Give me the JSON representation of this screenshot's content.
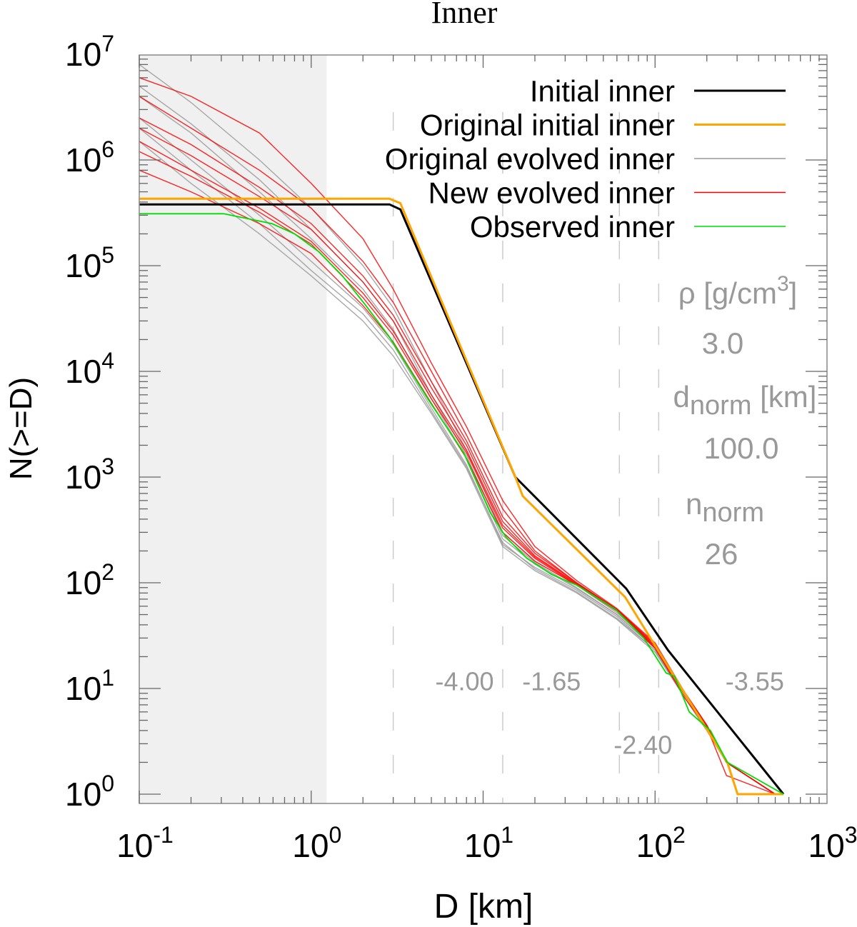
{
  "chart_data": {
    "type": "line",
    "title": "Inner",
    "xlabel": "D [km]",
    "ylabel": "N(>=D)",
    "xscale": "log",
    "yscale": "log",
    "xlim": [
      0.1,
      1000
    ],
    "ylim": [
      0.82,
      10000000
    ],
    "x_ticks": [
      {
        "base": "10",
        "exp": "-1",
        "value": 0.1
      },
      {
        "base": "10",
        "exp": "0",
        "value": 1
      },
      {
        "base": "10",
        "exp": "1",
        "value": 10
      },
      {
        "base": "10",
        "exp": "2",
        "value": 100
      },
      {
        "base": "10",
        "exp": "3",
        "value": 1000
      }
    ],
    "y_ticks": [
      {
        "base": "10",
        "exp": "0",
        "value": 1
      },
      {
        "base": "10",
        "exp": "1",
        "value": 10
      },
      {
        "base": "10",
        "exp": "2",
        "value": 100
      },
      {
        "base": "10",
        "exp": "3",
        "value": 1000
      },
      {
        "base": "10",
        "exp": "4",
        "value": 10000
      },
      {
        "base": "10",
        "exp": "5",
        "value": 100000
      },
      {
        "base": "10",
        "exp": "6",
        "value": 1000000
      },
      {
        "base": "10",
        "exp": "7",
        "value": 10000000
      }
    ],
    "shaded_region_x": [
      0.1,
      1.23
    ],
    "shaded_color": "#f0f0f0",
    "dashed_lines_x": [
      3,
      13,
      62,
      105
    ],
    "legend_position": "top-right",
    "grid": false,
    "ensemble_d": [
      0.1,
      0.2,
      0.5,
      1,
      2,
      3,
      5,
      8,
      13,
      20,
      35,
      60,
      100,
      150,
      200,
      260,
      500
    ],
    "series": [
      {
        "name": "Original evolved inner",
        "color": "#999999",
        "kind": "ensemble",
        "curves": [
          [
            8000000.0,
            3500000.0,
            1000000.0,
            350000.0,
            100000.0,
            40000.0,
            8000.0,
            1800.0,
            300,
            160,
            95,
            52,
            25,
            9,
            4.5,
            2,
            1
          ],
          [
            4000000.0,
            1800000.0,
            500000.0,
            180000.0,
            60000.0,
            25000.0,
            5500.0,
            1500.0,
            260,
            150,
            88,
            50,
            24,
            8.5,
            4.2,
            2,
            1
          ],
          [
            2500000.0,
            1000000.0,
            300000.0,
            110000.0,
            40000.0,
            18000.0,
            4500.0,
            1300.0,
            230,
            140,
            85,
            48,
            23,
            8,
            4,
            2,
            1
          ],
          [
            1500000.0,
            600000.0,
            200000.0,
            80000.0,
            30000.0,
            14000.0,
            4000.0,
            1200.0,
            220,
            130,
            80,
            45,
            22,
            8,
            4,
            2,
            1
          ],
          [
            5000000.0,
            2200000.0,
            650000.0,
            220000.0,
            70000.0,
            30000.0,
            6000.0,
            1600.0,
            280,
            155,
            90,
            50,
            24,
            8.5,
            4.2,
            2,
            1
          ],
          [
            2000000.0,
            800000.0,
            250000.0,
            90000.0,
            35000.0,
            16000.0,
            4200.0,
            1250.0,
            240,
            135,
            82,
            46,
            23,
            8,
            4,
            2,
            1
          ]
        ]
      },
      {
        "name": "New evolved inner",
        "color": "#ff0000",
        "kind": "ensemble",
        "curves": [
          [
            4000000.0,
            2000000.0,
            800000.0,
            350000.0,
            110000.0,
            45000.0,
            10000.0,
            2500.0,
            500,
            200,
            100,
            56,
            26,
            8.5,
            4.3,
            2,
            1
          ],
          [
            2000000.0,
            1100000.0,
            450000.0,
            220000.0,
            70000.0,
            30000.0,
            7000.0,
            2000.0,
            380,
            180,
            98,
            55,
            25,
            8.5,
            4.3,
            2,
            1
          ],
          [
            1200000.0,
            700000.0,
            320000.0,
            160000.0,
            50000.0,
            22000.0,
            5500.0,
            1700.0,
            330,
            170,
            95,
            55,
            24,
            8.5,
            4.3,
            2,
            1
          ],
          [
            800000.0,
            500000.0,
            250000.0,
            130000.0,
            42000.0,
            19000.0,
            5000.0,
            1500.0,
            300,
            160,
            95,
            54,
            24,
            8,
            4.2,
            2,
            1
          ],
          [
            2500000.0,
            1400000.0,
            550000.0,
            250000.0,
            80000.0,
            34000.0,
            8000.0,
            2200.0,
            420,
            190,
            100,
            56,
            26,
            9,
            4.5,
            2,
            1
          ],
          [
            1500000.0,
            800000.0,
            350000.0,
            170000.0,
            55000.0,
            24000.0,
            6000.0,
            1800.0,
            350,
            175,
            97,
            55,
            25,
            8.5,
            4.3,
            1.5,
            1
          ],
          [
            6000000.0,
            4000000.0,
            1800000.0,
            600000.0,
            180000.0,
            60000.0,
            12000.0,
            3000.0,
            600,
            220,
            105,
            57,
            27,
            9,
            4.5,
            2,
            1
          ]
        ]
      },
      {
        "name": "Initial inner",
        "color": "#000000",
        "kind": "line",
        "x": [
          0.1,
          2.85,
          3.3,
          15.4,
          68,
          119,
          558
        ],
        "y": [
          380000,
          380000,
          340000,
          1000,
          88,
          23,
          1
        ]
      },
      {
        "name": "Original initial inner",
        "color": "#ffa500",
        "kind": "line",
        "x": [
          0.1,
          2.85,
          3.3,
          15.4,
          17,
          67,
          263,
          302,
          558
        ],
        "y": [
          430000,
          430000,
          390000,
          1000,
          660,
          73,
          2,
          1,
          1
        ]
      },
      {
        "name": "Observed inner",
        "color": "#00dd00",
        "kind": "line",
        "x": [
          0.1,
          0.31,
          0.59,
          0.8,
          1.11,
          1.52,
          2.08,
          2.86,
          4.8,
          7.7,
          11,
          13.6,
          18,
          25,
          35,
          59,
          86,
          116,
          130,
          158,
          210,
          263,
          558
        ],
        "y": [
          310000,
          310000,
          250000,
          200000,
          135000,
          80000,
          42000,
          21000,
          5400,
          1700,
          460,
          270,
          170,
          120,
          95,
          56,
          30,
          14,
          13,
          6,
          4,
          2,
          1
        ]
      }
    ],
    "annotations": {
      "rho_label": "ρ [g/cm",
      "rho_exp": "3",
      "rho_close": "]",
      "rho_value": "3.0",
      "dnorm_label": "d",
      "dnorm_sub": "norm",
      "dnorm_unit": " [km]",
      "dnorm_value": "100.0",
      "nnorm_label": "n",
      "nnorm_sub": "norm",
      "nnorm_value": "26",
      "slopes": [
        {
          "text": "-4.00",
          "d": 7.8,
          "n": 12
        },
        {
          "text": "-1.65",
          "d": 25,
          "n": 12
        },
        {
          "text": "-2.40",
          "d": 85,
          "n": 3
        },
        {
          "text": "-3.55",
          "d": 380,
          "n": 12
        }
      ],
      "text_color": "#999999"
    },
    "legend_order": [
      "Initial inner",
      "Original initial inner",
      "Original evolved inner",
      "New evolved inner",
      "Observed inner"
    ]
  }
}
